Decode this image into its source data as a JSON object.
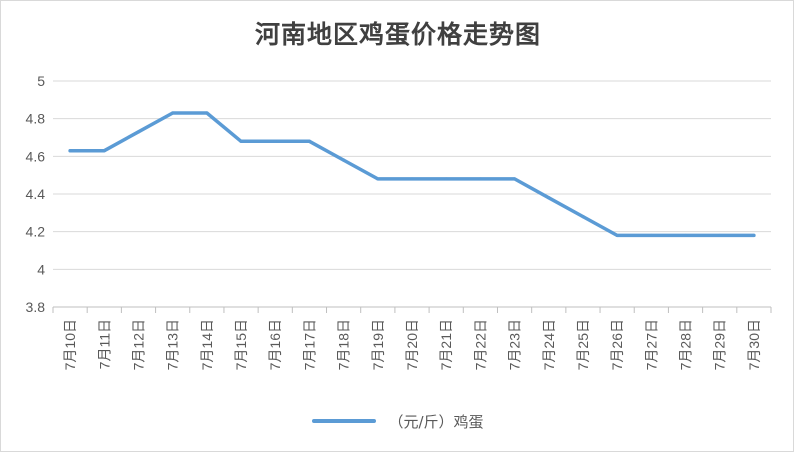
{
  "chart_data": {
    "type": "line",
    "title": "河南地区鸡蛋价格走势图",
    "categories": [
      "7月10日",
      "7月11日",
      "7月12日",
      "7月13日",
      "7月14日",
      "7月15日",
      "7月16日",
      "7月17日",
      "7月18日",
      "7月19日",
      "7月20日",
      "7月21日",
      "7月22日",
      "7月23日",
      "7月24日",
      "7月25日",
      "7月26日",
      "7月27日",
      "7月28日",
      "7月29日",
      "7月30日"
    ],
    "series": [
      {
        "name": "（元/斤）鸡蛋",
        "values": [
          4.63,
          4.63,
          4.73,
          4.83,
          4.83,
          4.68,
          4.68,
          4.68,
          4.58,
          4.48,
          4.48,
          4.48,
          4.48,
          4.48,
          4.38,
          4.28,
          4.18,
          4.18,
          4.18,
          4.18,
          4.18
        ],
        "color": "#5b9bd5"
      }
    ],
    "ylim": [
      3.8,
      5
    ],
    "yticks": [
      "3.8",
      "4",
      "4.2",
      "4.4",
      "4.6",
      "4.8",
      "5"
    ],
    "grid": true,
    "legend": "bottom"
  }
}
